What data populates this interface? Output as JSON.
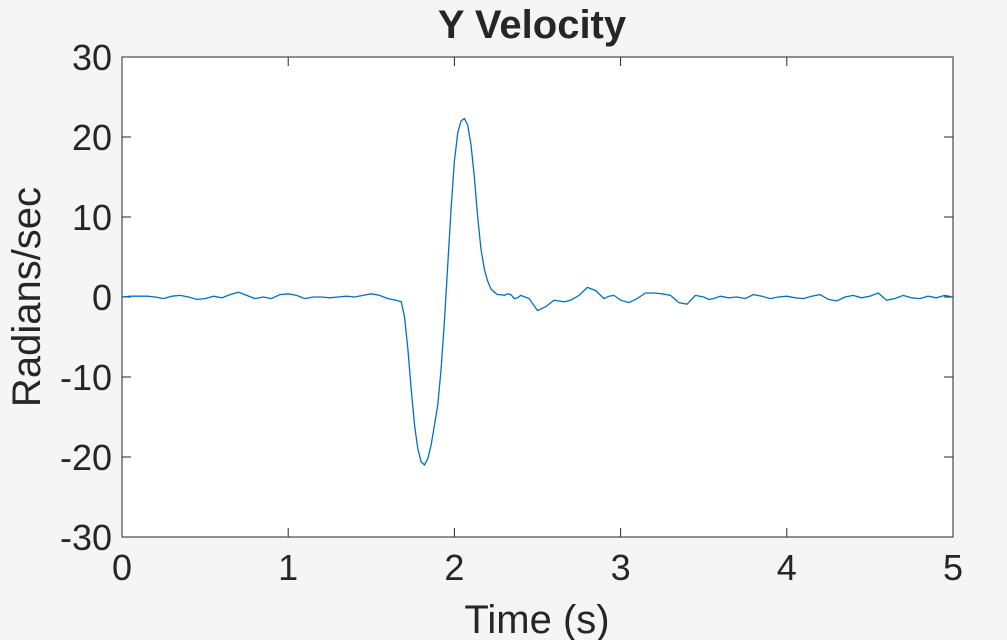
{
  "chart_data": {
    "type": "line",
    "title": "Y Velocity",
    "xlabel": "Time (s)",
    "ylabel": "Radians/sec",
    "xlim": [
      0,
      5
    ],
    "ylim": [
      -30,
      30
    ],
    "xticks": [
      0,
      1,
      2,
      3,
      4,
      5
    ],
    "yticks": [
      -30,
      -20,
      -10,
      0,
      10,
      20,
      30
    ],
    "grid": false,
    "colors": {
      "line": "#0072bd",
      "axes": "#262626",
      "plot_bg": "#ffffff",
      "figure_bg": "#f5f5f5"
    },
    "series": [
      {
        "x": [
          0,
          0.05,
          0.1,
          0.15,
          0.2,
          0.25,
          0.3,
          0.35,
          0.4,
          0.45,
          0.5,
          0.55,
          0.6,
          0.65,
          0.7,
          0.75,
          0.8,
          0.85,
          0.9,
          0.95,
          1.0,
          1.05,
          1.1,
          1.15,
          1.2,
          1.25,
          1.3,
          1.35,
          1.4,
          1.45,
          1.5,
          1.55,
          1.6,
          1.65,
          1.68,
          1.7,
          1.72,
          1.74,
          1.76,
          1.78,
          1.8,
          1.82,
          1.84,
          1.86,
          1.88,
          1.9,
          1.92,
          1.94,
          1.96,
          1.98,
          2.0,
          2.02,
          2.04,
          2.06,
          2.08,
          2.1,
          2.12,
          2.14,
          2.16,
          2.18,
          2.2,
          2.22,
          2.24,
          2.26,
          2.28,
          2.3,
          2.32,
          2.34,
          2.36,
          2.38,
          2.4,
          2.45,
          2.5,
          2.55,
          2.6,
          2.63,
          2.66,
          2.7,
          2.75,
          2.8,
          2.85,
          2.9,
          2.93,
          2.96,
          3.0,
          3.05,
          3.1,
          3.15,
          3.2,
          3.25,
          3.3,
          3.35,
          3.4,
          3.45,
          3.5,
          3.53,
          3.56,
          3.6,
          3.65,
          3.7,
          3.75,
          3.8,
          3.85,
          3.9,
          3.95,
          4.0,
          4.05,
          4.1,
          4.15,
          4.2,
          4.25,
          4.3,
          4.35,
          4.4,
          4.45,
          4.5,
          4.55,
          4.6,
          4.65,
          4.7,
          4.75,
          4.8,
          4.85,
          4.9,
          4.95,
          5.0
        ],
        "y": [
          0,
          0.1,
          0.1,
          0.1,
          0,
          -0.2,
          0.1,
          0.2,
          0,
          -0.3,
          -0.2,
          0.1,
          -0.1,
          0.3,
          0.6,
          0.2,
          -0.2,
          0,
          -0.2,
          0.3,
          0.4,
          0.2,
          -0.2,
          0,
          0,
          -0.1,
          0,
          0.1,
          0,
          0.2,
          0.4,
          0.2,
          -0.2,
          -0.4,
          -0.6,
          -2.5,
          -6.5,
          -11.5,
          -16,
          -19,
          -20.6,
          -21,
          -20.2,
          -18.5,
          -16,
          -13.5,
          -9,
          -3,
          4,
          11,
          17,
          20.5,
          22,
          22.3,
          21.5,
          19,
          15,
          10,
          6,
          3.5,
          2,
          1,
          0.6,
          0.3,
          0.3,
          0.2,
          0.4,
          0.3,
          -0.2,
          -0.1,
          0.2,
          -0.2,
          -1.7,
          -1.2,
          -0.4,
          -0.5,
          -0.6,
          -0.4,
          0.2,
          1.2,
          0.8,
          -0.2,
          0.1,
          0.2,
          -0.4,
          -0.7,
          -0.2,
          0.5,
          0.5,
          0.4,
          0.2,
          -0.7,
          -0.9,
          0.2,
          0,
          -0.3,
          -0.2,
          0.1,
          -0.1,
          0,
          -0.2,
          0.3,
          0.1,
          -0.2,
          0,
          0.1,
          -0.1,
          -0.2,
          0.1,
          0.3,
          -0.3,
          -0.5,
          0,
          0.2,
          -0.1,
          0.1,
          0.5,
          -0.4,
          -0.2,
          0.2,
          -0.1,
          -0.2,
          0.1,
          -0.1,
          0.2,
          0
        ]
      }
    ]
  }
}
